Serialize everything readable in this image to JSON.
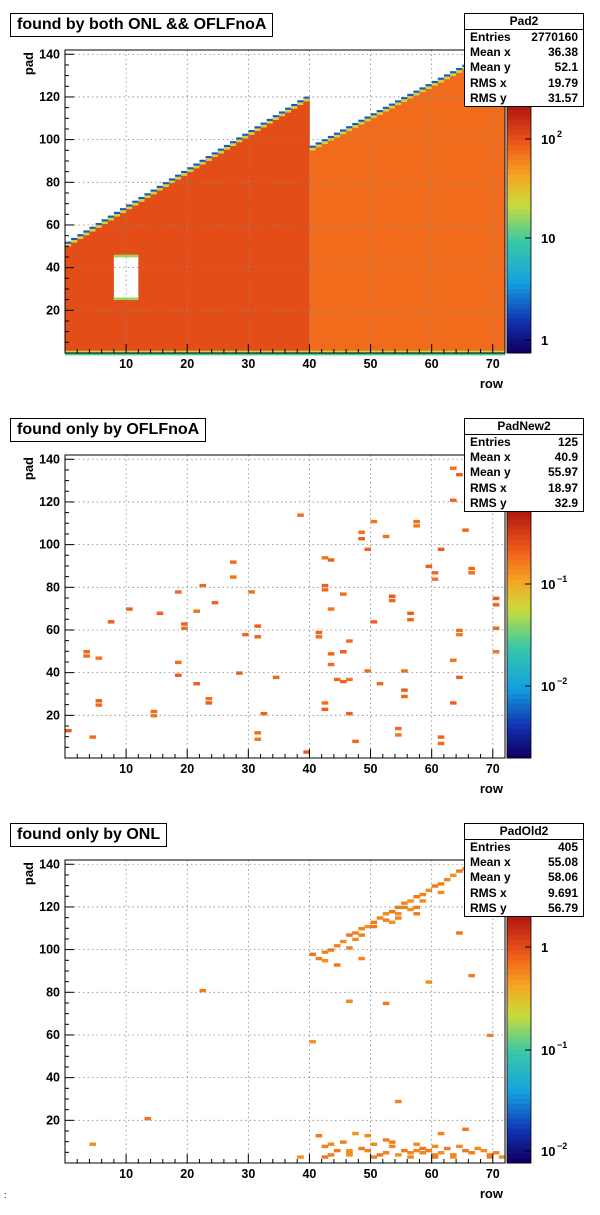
{
  "chart_data": [
    {
      "type": "heatmap",
      "title": "found by both ONL && OFLFnoA",
      "xlabel": "row",
      "ylabel": "pad",
      "xlim": [
        0,
        72
      ],
      "ylim": [
        0,
        142
      ],
      "x_ticks": [
        "10",
        "20",
        "30",
        "40",
        "50",
        "60",
        "70"
      ],
      "y_ticks": [
        "20",
        "40",
        "60",
        "80",
        "100",
        "120",
        "140"
      ],
      "grid": true,
      "z_scale": "log",
      "z_ticks": [
        {
          "base": "1",
          "exp": ""
        },
        {
          "base": "10",
          "exp": ""
        },
        {
          "base": "10",
          "exp": "2"
        }
      ],
      "stats": {
        "name": "Pad2",
        "rows": [
          {
            "label": "Entries",
            "value": "2770160"
          },
          {
            "label": "Mean x",
            "value": "36.38"
          },
          {
            "label": "Mean y",
            "value": "52.1"
          },
          {
            "label": "RMS x",
            "value": "19.79"
          },
          {
            "label": "RMS y",
            "value": "31.57"
          }
        ]
      },
      "filled_region": {
        "segments": [
          {
            "from_row": 0,
            "to_row": 40,
            "pad_max_start": 50,
            "pad_max_end": 118
          },
          {
            "from_row": 40,
            "to_row": 72,
            "pad_max_start": 95,
            "pad_max_end": 142
          }
        ],
        "empty_hole": {
          "rows": [
            8,
            12
          ],
          "pads": [
            25,
            46
          ]
        }
      }
    },
    {
      "type": "heatmap",
      "title": "found only by OFLFnoA",
      "xlabel": "row",
      "ylabel": "pad",
      "xlim": [
        0,
        72
      ],
      "ylim": [
        0,
        142
      ],
      "x_ticks": [
        "10",
        "20",
        "30",
        "40",
        "50",
        "60",
        "70"
      ],
      "y_ticks": [
        "20",
        "40",
        "60",
        "80",
        "100",
        "120",
        "140"
      ],
      "grid": true,
      "z_scale": "log",
      "z_ticks": [
        {
          "base": "10",
          "exp": "−2"
        },
        {
          "base": "10",
          "exp": "−1"
        }
      ],
      "stats": {
        "name": "PadNew2",
        "rows": [
          {
            "label": "Entries",
            "value": "125"
          },
          {
            "label": "Mean x",
            "value": "40.9"
          },
          {
            "label": "Mean y",
            "value": "55.97"
          },
          {
            "label": "RMS x",
            "value": "18.97"
          },
          {
            "label": "RMS y",
            "value": "32.9"
          }
        ]
      },
      "points": [
        [
          0,
          12
        ],
        [
          3,
          49
        ],
        [
          3,
          47
        ],
        [
          5,
          46
        ],
        [
          5,
          26
        ],
        [
          5,
          24
        ],
        [
          4,
          9
        ],
        [
          7,
          63
        ],
        [
          10,
          69
        ],
        [
          14,
          21
        ],
        [
          14,
          19
        ],
        [
          15,
          67
        ],
        [
          18,
          77
        ],
        [
          18,
          44
        ],
        [
          18,
          38
        ],
        [
          19,
          62
        ],
        [
          19,
          60
        ],
        [
          21,
          68
        ],
        [
          21,
          34
        ],
        [
          22,
          80
        ],
        [
          23,
          27
        ],
        [
          23,
          25
        ],
        [
          24,
          72
        ],
        [
          27,
          91
        ],
        [
          27,
          84
        ],
        [
          28,
          39
        ],
        [
          29,
          57
        ],
        [
          30,
          77
        ],
        [
          31,
          61
        ],
        [
          31,
          56
        ],
        [
          31,
          11
        ],
        [
          31,
          8
        ],
        [
          32,
          20
        ],
        [
          34,
          37
        ],
        [
          38,
          113
        ],
        [
          39,
          2
        ],
        [
          41,
          58
        ],
        [
          41,
          56
        ],
        [
          42,
          93
        ],
        [
          42,
          80
        ],
        [
          42,
          78
        ],
        [
          42,
          25
        ],
        [
          42,
          22
        ],
        [
          43,
          48
        ],
        [
          43,
          43
        ],
        [
          43,
          69
        ],
        [
          43,
          92
        ],
        [
          44,
          36
        ],
        [
          45,
          76
        ],
        [
          45,
          49
        ],
        [
          45,
          35
        ],
        [
          46,
          54
        ],
        [
          46,
          36
        ],
        [
          46,
          20
        ],
        [
          47,
          7
        ],
        [
          48,
          105
        ],
        [
          48,
          102
        ],
        [
          49,
          97
        ],
        [
          49,
          40
        ],
        [
          50,
          110
        ],
        [
          50,
          63
        ],
        [
          51,
          34
        ],
        [
          52,
          103
        ],
        [
          53,
          75
        ],
        [
          53,
          73
        ],
        [
          54,
          13
        ],
        [
          54,
          10
        ],
        [
          55,
          31
        ],
        [
          55,
          28
        ],
        [
          55,
          40
        ],
        [
          56,
          67
        ],
        [
          56,
          64
        ],
        [
          57,
          110
        ],
        [
          57,
          108
        ],
        [
          59,
          89
        ],
        [
          60,
          86
        ],
        [
          60,
          83
        ],
        [
          61,
          97
        ],
        [
          61,
          9
        ],
        [
          61,
          6
        ],
        [
          63,
          45
        ],
        [
          63,
          25
        ],
        [
          63,
          120
        ],
        [
          63,
          135
        ],
        [
          64,
          132
        ],
        [
          65,
          106
        ],
        [
          64,
          59
        ],
        [
          64,
          57
        ],
        [
          64,
          37
        ],
        [
          66,
          88
        ],
        [
          66,
          86
        ],
        [
          70,
          74
        ],
        [
          70,
          71
        ],
        [
          70,
          60
        ],
        [
          70,
          49
        ]
      ],
      "point_level": 0.3
    },
    {
      "type": "heatmap",
      "title": "found only by ONL",
      "xlabel": "row",
      "ylabel": "pad",
      "xlim": [
        0,
        72
      ],
      "ylim": [
        0,
        142
      ],
      "x_ticks": [
        "10",
        "20",
        "30",
        "40",
        "50",
        "60",
        "70"
      ],
      "y_ticks": [
        "20",
        "40",
        "60",
        "80",
        "100",
        "120",
        "140"
      ],
      "grid": true,
      "z_scale": "log",
      "z_ticks": [
        {
          "base": "10",
          "exp": "−2"
        },
        {
          "base": "10",
          "exp": "−1"
        },
        {
          "base": "1",
          "exp": ""
        }
      ],
      "stats": {
        "name": "PadOld2",
        "rows": [
          {
            "label": "Entries",
            "value": "405"
          },
          {
            "label": "Mean x",
            "value": "55.08"
          },
          {
            "label": "Mean y",
            "value": "58.06"
          },
          {
            "label": "RMS x",
            "value": "9.691"
          },
          {
            "label": "RMS y",
            "value": "56.79"
          }
        ]
      },
      "points": [
        [
          40,
          97
        ],
        [
          41,
          95
        ],
        [
          42,
          98
        ],
        [
          42,
          94
        ],
        [
          43,
          99
        ],
        [
          44,
          101
        ],
        [
          45,
          103
        ],
        [
          46,
          106
        ],
        [
          47,
          107
        ],
        [
          48,
          109
        ],
        [
          49,
          110
        ],
        [
          50,
          112
        ],
        [
          51,
          114
        ],
        [
          52,
          116
        ],
        [
          53,
          117
        ],
        [
          54,
          119
        ],
        [
          55,
          121
        ],
        [
          56,
          122
        ],
        [
          57,
          124
        ],
        [
          58,
          125
        ],
        [
          59,
          127
        ],
        [
          60,
          129
        ],
        [
          61,
          130
        ],
        [
          62,
          132
        ],
        [
          63,
          134
        ],
        [
          64,
          136
        ],
        [
          65,
          137
        ],
        [
          66,
          139
        ],
        [
          67,
          140
        ],
        [
          52,
          113
        ],
        [
          54,
          116
        ],
        [
          56,
          118
        ],
        [
          57,
          119
        ],
        [
          55,
          119
        ],
        [
          58,
          122
        ],
        [
          50,
          110
        ],
        [
          48,
          106
        ],
        [
          47,
          104
        ],
        [
          53,
          112
        ],
        [
          57,
          116
        ],
        [
          54,
          114
        ],
        [
          61,
          126
        ],
        [
          44,
          92
        ],
        [
          46,
          100
        ],
        [
          48,
          95
        ],
        [
          38,
          2
        ],
        [
          41,
          12
        ],
        [
          42,
          7
        ],
        [
          43,
          8
        ],
        [
          44,
          5
        ],
        [
          45,
          9
        ],
        [
          46,
          4
        ],
        [
          47,
          13
        ],
        [
          48,
          6
        ],
        [
          49,
          5
        ],
        [
          50,
          8
        ],
        [
          51,
          3
        ],
        [
          52,
          10
        ],
        [
          53,
          7
        ],
        [
          54,
          3
        ],
        [
          55,
          5
        ],
        [
          56,
          4
        ],
        [
          57,
          8
        ],
        [
          58,
          6
        ],
        [
          59,
          5
        ],
        [
          60,
          3
        ],
        [
          61,
          4
        ],
        [
          62,
          6
        ],
        [
          63,
          3
        ],
        [
          64,
          7
        ],
        [
          65,
          5
        ],
        [
          66,
          4
        ],
        [
          67,
          6
        ],
        [
          68,
          5
        ],
        [
          69,
          3
        ],
        [
          70,
          4
        ],
        [
          71,
          2
        ],
        [
          42,
          2
        ],
        [
          50,
          2
        ],
        [
          56,
          2
        ],
        [
          63,
          2
        ],
        [
          43,
          3
        ],
        [
          52,
          4
        ],
        [
          60,
          7
        ],
        [
          65,
          15
        ],
        [
          69,
          2
        ],
        [
          57,
          5
        ],
        [
          46,
          3
        ],
        [
          60,
          2
        ],
        [
          58,
          4
        ],
        [
          4,
          8
        ],
        [
          13,
          20
        ],
        [
          22,
          80
        ],
        [
          46,
          75
        ],
        [
          40,
          56
        ],
        [
          52,
          74
        ],
        [
          54,
          28
        ],
        [
          59,
          84
        ],
        [
          64,
          107
        ],
        [
          66,
          87
        ],
        [
          69,
          59
        ],
        [
          46,
          5
        ],
        [
          53,
          9
        ],
        [
          61,
          13
        ],
        [
          49,
          12
        ]
      ],
      "point_level": 0.6
    }
  ],
  "footnote": ":"
}
